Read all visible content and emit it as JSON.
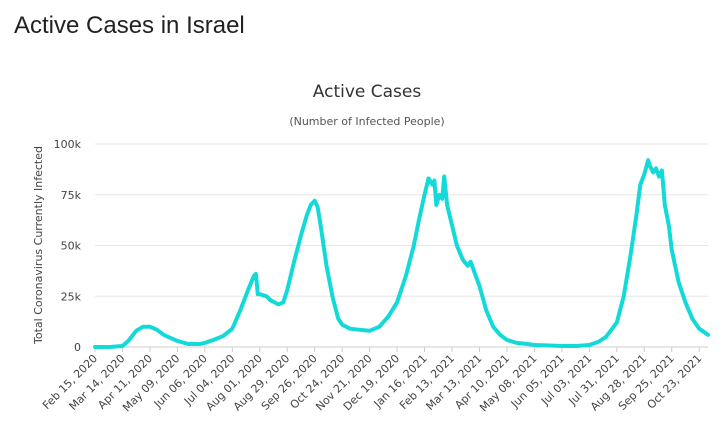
{
  "page": {
    "heading": "Active Cases in Israel"
  },
  "chart_data": {
    "type": "line",
    "title": "Active Cases",
    "subtitle": "(Number of Infected People)",
    "ylabel": "Total Coronavirus Currently Infected",
    "xlabel": "",
    "ylim": [
      0,
      100000
    ],
    "yticks": [
      0,
      25000,
      50000,
      75000,
      100000
    ],
    "ytick_labels": [
      "0",
      "25k",
      "50k",
      "75k",
      "100k"
    ],
    "grid": true,
    "legend": "none",
    "color": "#14d9d9",
    "xtick_labels": [
      "Feb 15, 2020",
      "Mar 14, 2020",
      "Apr 11, 2020",
      "May 09, 2020",
      "Jun 06, 2020",
      "Jul 04, 2020",
      "Aug 01, 2020",
      "Aug 29, 2020",
      "Sep 26, 2020",
      "Oct 24, 2020",
      "Nov 21, 2020",
      "Dec 19, 2020",
      "Jan 16, 2021",
      "Feb 13, 2021",
      "Mar 13, 2021",
      "Apr 10, 2021",
      "May 08, 2021",
      "Jun 05, 2021",
      "Jul 03, 2021",
      "Jul 31, 2021",
      "Aug 28, 2021",
      "Sep 25, 2021",
      "Oct 23, 2021"
    ],
    "series": [
      {
        "x": [
          "2020-02-15",
          "2020-03-01",
          "2020-03-14",
          "2020-03-20",
          "2020-03-28",
          "2020-04-04",
          "2020-04-11",
          "2020-04-18",
          "2020-04-25",
          "2020-05-02",
          "2020-05-09",
          "2020-05-20",
          "2020-06-01",
          "2020-06-06",
          "2020-06-15",
          "2020-06-25",
          "2020-07-04",
          "2020-07-12",
          "2020-07-20",
          "2020-07-26",
          "2020-07-28",
          "2020-07-30",
          "2020-08-01",
          "2020-08-08",
          "2020-08-12",
          "2020-08-20",
          "2020-08-25",
          "2020-08-29",
          "2020-09-05",
          "2020-09-12",
          "2020-09-18",
          "2020-09-22",
          "2020-09-26",
          "2020-09-29",
          "2020-10-02",
          "2020-10-08",
          "2020-10-14",
          "2020-10-20",
          "2020-10-24",
          "2020-11-01",
          "2020-11-10",
          "2020-11-21",
          "2020-12-01",
          "2020-12-10",
          "2020-12-19",
          "2020-12-28",
          "2021-01-05",
          "2021-01-10",
          "2021-01-16",
          "2021-01-20",
          "2021-01-24",
          "2021-01-26",
          "2021-01-28",
          "2021-01-31",
          "2021-02-03",
          "2021-02-05",
          "2021-02-08",
          "2021-02-13",
          "2021-02-18",
          "2021-02-24",
          "2021-03-01",
          "2021-03-04",
          "2021-03-07",
          "2021-03-13",
          "2021-03-20",
          "2021-03-27",
          "2021-04-03",
          "2021-04-10",
          "2021-04-20",
          "2021-05-01",
          "2021-05-08",
          "2021-05-20",
          "2021-06-05",
          "2021-06-20",
          "2021-07-03",
          "2021-07-12",
          "2021-07-20",
          "2021-07-31",
          "2021-08-07",
          "2021-08-14",
          "2021-08-20",
          "2021-08-24",
          "2021-08-28",
          "2021-09-01",
          "2021-09-03",
          "2021-09-06",
          "2021-09-09",
          "2021-09-12",
          "2021-09-15",
          "2021-09-18",
          "2021-09-22",
          "2021-09-25",
          "2021-10-02",
          "2021-10-09",
          "2021-10-16",
          "2021-10-23",
          "2021-11-01"
        ],
        "y": [
          0,
          0,
          500,
          3000,
          8000,
          10000,
          10000,
          8500,
          6000,
          4500,
          3000,
          1500,
          1500,
          2000,
          3500,
          5500,
          9000,
          18000,
          28000,
          35000,
          36000,
          26000,
          26000,
          25000,
          23000,
          21000,
          22000,
          28000,
          42000,
          55000,
          65000,
          70000,
          72000,
          69000,
          60000,
          40000,
          25000,
          14000,
          11000,
          9000,
          8500,
          8000,
          10000,
          15000,
          22000,
          35000,
          50000,
          62000,
          75000,
          83000,
          80000,
          82000,
          70000,
          75000,
          73000,
          84000,
          70000,
          60000,
          50000,
          43000,
          40000,
          42000,
          38000,
          30000,
          18000,
          10000,
          6000,
          3500,
          2000,
          1500,
          1000,
          800,
          500,
          500,
          1000,
          2500,
          5000,
          12000,
          25000,
          45000,
          65000,
          80000,
          85000,
          92000,
          89000,
          86000,
          88000,
          84000,
          87000,
          70000,
          60000,
          48000,
          32000,
          22000,
          14000,
          9000,
          6000
        ]
      }
    ]
  }
}
